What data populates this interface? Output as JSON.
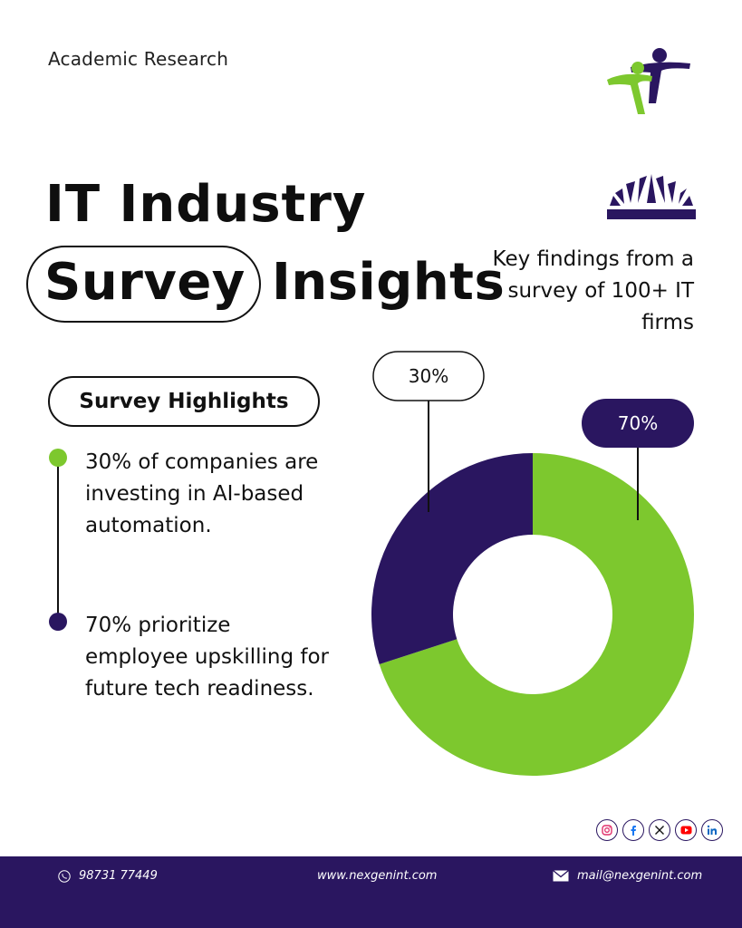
{
  "header": {
    "eyebrow": "Academic Research",
    "title_line1": "IT  Industry",
    "title_highlight": "Survey",
    "title_rest": "Insights",
    "tagline": "Key findings from a survey of 100+ IT firms"
  },
  "highlights": {
    "heading": "Survey Highlights",
    "items": [
      {
        "text": "30% of companies are investing in AI-based automation.",
        "color": "#7dc82e"
      },
      {
        "text": "70% prioritize employee upskilling for future tech readiness.",
        "color": "#2a1660"
      }
    ]
  },
  "chart_data": {
    "type": "pie",
    "style": "donut",
    "title": "",
    "slices": [
      {
        "label": "30%",
        "value": 30,
        "color": "#2a1660"
      },
      {
        "label": "70%",
        "value": 70,
        "color": "#7dc82e"
      }
    ]
  },
  "socials": [
    {
      "name": "instagram-icon",
      "color": "#e1306c"
    },
    {
      "name": "facebook-icon",
      "color": "#1877f2"
    },
    {
      "name": "x-icon",
      "color": "#111111"
    },
    {
      "name": "youtube-icon",
      "color": "#ff0000"
    },
    {
      "name": "linkedin-icon",
      "color": "#0a66c2"
    }
  ],
  "footer": {
    "phone": "98731 77449",
    "website": "www.nexgenint.com",
    "email": "mail@nexgenint.com"
  },
  "colors": {
    "accent_green": "#7dc82e",
    "accent_purple": "#2a1660"
  }
}
